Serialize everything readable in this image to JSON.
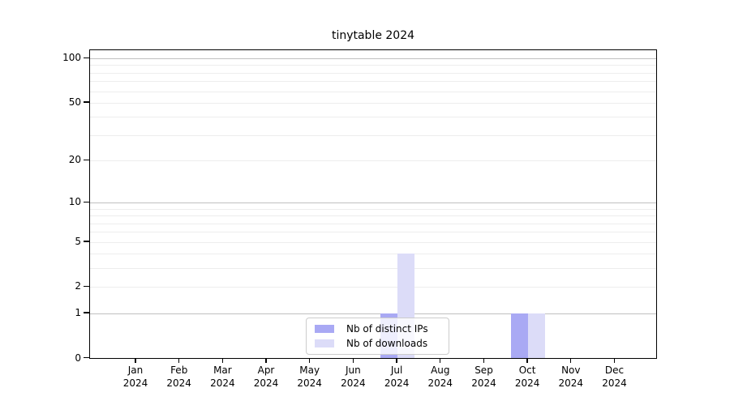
{
  "title": "tinytable 2024",
  "colors": {
    "distinct_ips": "#a9a9f4",
    "downloads": "#dcdcf8",
    "grid_major": "#c0c0c0",
    "grid_minor": "#ededed",
    "axis": "#000000",
    "legend_border": "#cccccc"
  },
  "legend": {
    "position": "lower center",
    "items": [
      {
        "label": "Nb of distinct IPs",
        "color_key": "distinct_ips"
      },
      {
        "label": "Nb of downloads",
        "color_key": "downloads"
      }
    ]
  },
  "chart_data": {
    "type": "bar",
    "title": "tinytable 2024",
    "xlabel": "",
    "ylabel": "",
    "categories": [
      "Jan 2024",
      "Feb 2024",
      "Mar 2024",
      "Apr 2024",
      "May 2024",
      "Jun 2024",
      "Jul 2024",
      "Aug 2024",
      "Sep 2024",
      "Oct 2024",
      "Nov 2024",
      "Dec 2024"
    ],
    "series": [
      {
        "name": "Nb of distinct IPs",
        "color_key": "distinct_ips",
        "values": [
          0,
          0,
          0,
          0,
          0,
          0,
          1,
          0,
          0,
          1,
          0,
          0
        ]
      },
      {
        "name": "Nb of downloads",
        "color_key": "downloads",
        "values": [
          0,
          0,
          0,
          0,
          0,
          0,
          4,
          0,
          0,
          1,
          0,
          0
        ]
      }
    ],
    "yscale": "log1p",
    "ylim": [
      0,
      113
    ],
    "yticks": [
      0,
      1,
      2,
      5,
      10,
      20,
      50,
      100
    ],
    "major_gridlines": [
      1,
      10,
      100
    ],
    "minor_gridlines": [
      2,
      3,
      4,
      5,
      6,
      7,
      8,
      9,
      20,
      30,
      40,
      50,
      60,
      70,
      80,
      90
    ],
    "grid": true,
    "legend_position": "lower center"
  }
}
